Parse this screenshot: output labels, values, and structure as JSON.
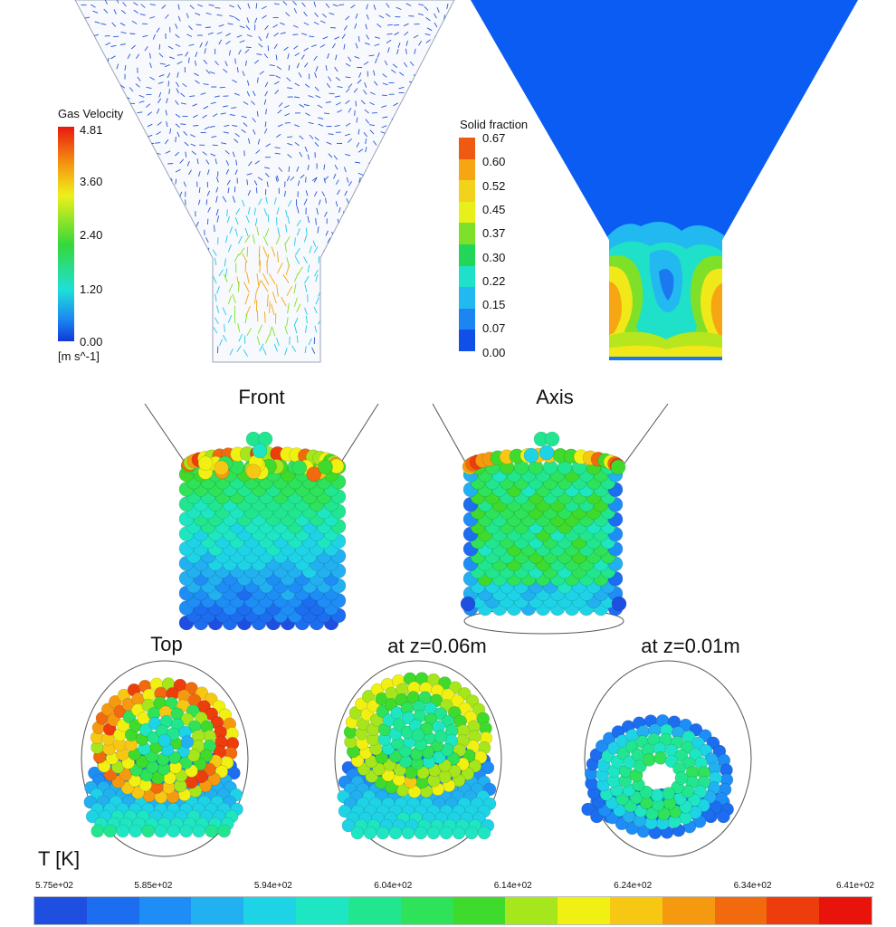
{
  "gas_velocity": {
    "title": "Gas Velocity",
    "unit": "[m s^-1]",
    "ticks": [
      "4.81",
      "3.60",
      "2.40",
      "1.20",
      "0.00"
    ]
  },
  "solid_fraction": {
    "title": "Solid fraction",
    "ticks": [
      "0.67",
      "0.60",
      "0.52",
      "0.45",
      "0.37",
      "0.30",
      "0.22",
      "0.15",
      "0.07",
      "0.00"
    ]
  },
  "views": {
    "front": "Front",
    "axis": "Axis",
    "top": "Top",
    "z006": "at z=0.06m",
    "z001": "at z=0.01m"
  },
  "temperature": {
    "title": "T [K]",
    "ticks": [
      "5.75e+02",
      "5.85e+02",
      "5.94e+02",
      "6.04e+02",
      "6.14e+02",
      "6.24e+02",
      "6.34e+02",
      "6.41e+02"
    ]
  },
  "colors": {
    "bed_blue": "#0b5cf2",
    "palette": [
      "#1f4fe0",
      "#1c6df0",
      "#1e8df5",
      "#22b0f0",
      "#1fd3e6",
      "#1fe6c2",
      "#22e68f",
      "#2ee25a",
      "#3fdb2c",
      "#a6e61c",
      "#f0f012",
      "#f6c814",
      "#f59a10",
      "#f26a0e",
      "#ee3d0c",
      "#e8140c"
    ]
  }
}
